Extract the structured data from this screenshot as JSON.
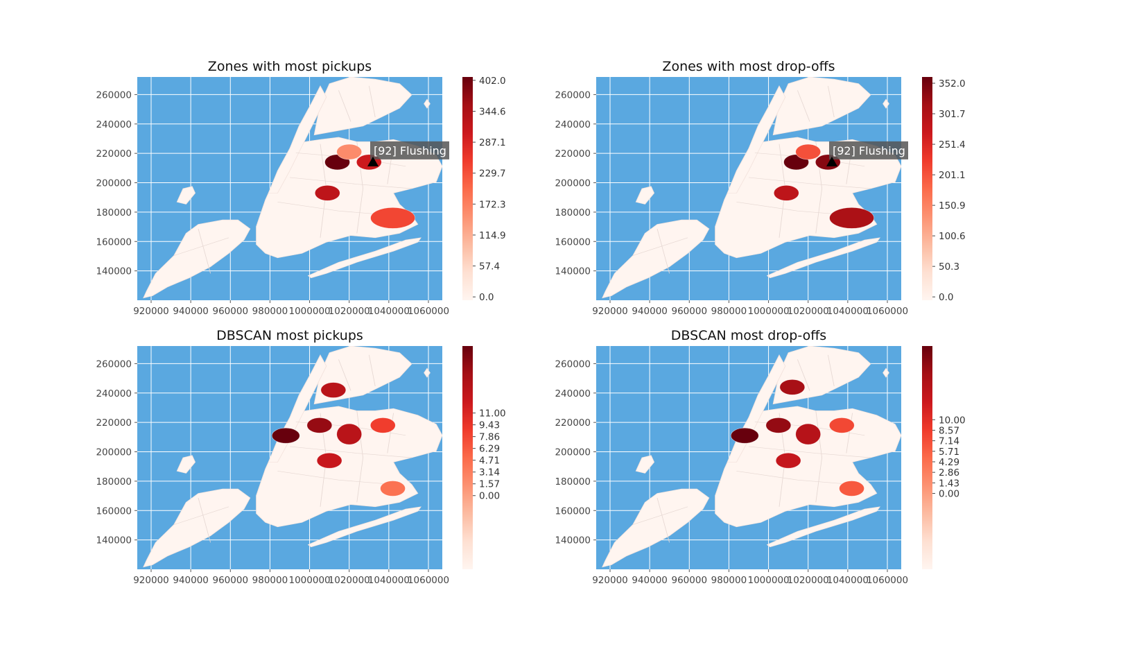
{
  "colors": {
    "water": "#5aa8e0",
    "grid": "#ffffff",
    "land_low": "#fff5f0",
    "land_mid": "#fb6a4a",
    "land_high": "#67000d",
    "annotation_bg": "#555555"
  },
  "chart_data": [
    {
      "type": "choropleth",
      "title": "Zones with most pickups",
      "x_ticks": [
        "920000",
        "940000",
        "960000",
        "980000",
        "1000000",
        "1020000",
        "1040000",
        "1060000"
      ],
      "y_ticks": [
        "260000",
        "240000",
        "220000",
        "200000",
        "180000",
        "160000",
        "140000"
      ],
      "xlim": [
        913000,
        1067000
      ],
      "ylim": [
        120000,
        272000
      ],
      "colorbar_ticks": [
        "402.0",
        "344.6",
        "287.1",
        "229.7",
        "172.3",
        "114.9",
        "57.4",
        "0.0"
      ],
      "colorbar_range": [
        0,
        402
      ],
      "annotation": {
        "text": "[92] Flushing",
        "marker": "triangle",
        "x": 1032000,
        "y": 214000
      },
      "hotspots": [
        {
          "x": 1014000,
          "y": 214000,
          "value": 402
        },
        {
          "x": 1009000,
          "y": 193000,
          "value": 320
        },
        {
          "x": 1042000,
          "y": 176000,
          "value": 240
        },
        {
          "x": 1030000,
          "y": 214000,
          "value": 300
        },
        {
          "x": 1020000,
          "y": 221000,
          "value": 160
        }
      ]
    },
    {
      "type": "choropleth",
      "title": "Zones with most drop-offs",
      "x_ticks": [
        "920000",
        "940000",
        "960000",
        "980000",
        "1000000",
        "1020000",
        "1040000",
        "1060000"
      ],
      "y_ticks": [
        "260000",
        "240000",
        "220000",
        "200000",
        "180000",
        "160000",
        "140000"
      ],
      "xlim": [
        913000,
        1067000
      ],
      "ylim": [
        120000,
        272000
      ],
      "colorbar_ticks": [
        "352.0",
        "301.7",
        "251.4",
        "201.1",
        "150.9",
        "100.6",
        "50.3",
        "0.0"
      ],
      "colorbar_range": [
        0,
        352
      ],
      "annotation": {
        "text": "[92] Flushing",
        "marker": "triangle",
        "x": 1032000,
        "y": 214000
      },
      "hotspots": [
        {
          "x": 1014000,
          "y": 214000,
          "value": 352
        },
        {
          "x": 1009000,
          "y": 193000,
          "value": 280
        },
        {
          "x": 1042000,
          "y": 176000,
          "value": 300
        },
        {
          "x": 1030000,
          "y": 214000,
          "value": 330
        },
        {
          "x": 1020000,
          "y": 221000,
          "value": 200
        }
      ]
    },
    {
      "type": "choropleth",
      "title": "DBSCAN most pickups",
      "x_ticks": [
        "920000",
        "940000",
        "960000",
        "980000",
        "1000000",
        "1020000",
        "1040000",
        "1060000"
      ],
      "y_ticks": [
        "260000",
        "240000",
        "220000",
        "200000",
        "180000",
        "160000",
        "140000"
      ],
      "xlim": [
        913000,
        1067000
      ],
      "ylim": [
        120000,
        272000
      ],
      "colorbar_ticks": [
        "11.00",
        "9.43",
        "7.86",
        "6.29",
        "4.71",
        "3.14",
        "1.57",
        "0.00"
      ],
      "colorbar_range": [
        -6,
        15
      ],
      "hotspots": [
        {
          "x": 988000,
          "y": 211000,
          "value": 15
        },
        {
          "x": 1005000,
          "y": 218000,
          "value": 13
        },
        {
          "x": 1020000,
          "y": 212000,
          "value": 11
        },
        {
          "x": 1037000,
          "y": 218000,
          "value": 7
        },
        {
          "x": 1012000,
          "y": 242000,
          "value": 11
        },
        {
          "x": 1010000,
          "y": 194000,
          "value": 10
        },
        {
          "x": 1042000,
          "y": 175000,
          "value": 4
        }
      ]
    },
    {
      "type": "choropleth",
      "title": "DBSCAN most drop-offs",
      "x_ticks": [
        "920000",
        "940000",
        "960000",
        "980000",
        "1000000",
        "1020000",
        "1040000",
        "1060000"
      ],
      "y_ticks": [
        "260000",
        "240000",
        "220000",
        "200000",
        "180000",
        "160000",
        "140000"
      ],
      "xlim": [
        913000,
        1067000
      ],
      "ylim": [
        120000,
        272000
      ],
      "colorbar_ticks": [
        "10.00",
        "8.57",
        "7.14",
        "5.71",
        "4.29",
        "2.86",
        "1.43",
        "0.00"
      ],
      "colorbar_range": [
        -7,
        15
      ],
      "hotspots": [
        {
          "x": 988000,
          "y": 211000,
          "value": 15
        },
        {
          "x": 1005000,
          "y": 218000,
          "value": 13
        },
        {
          "x": 1020000,
          "y": 212000,
          "value": 11
        },
        {
          "x": 1037000,
          "y": 218000,
          "value": 6
        },
        {
          "x": 1012000,
          "y": 244000,
          "value": 12
        },
        {
          "x": 1010000,
          "y": 194000,
          "value": 10
        },
        {
          "x": 1042000,
          "y": 175000,
          "value": 5
        }
      ]
    }
  ]
}
